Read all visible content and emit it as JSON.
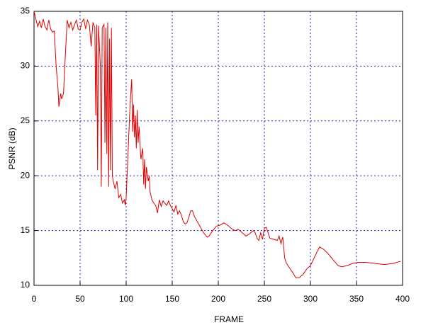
{
  "chart_data": {
    "type": "line",
    "xlabel": "FRAME",
    "ylabel": "PSNR (dB)",
    "color": "#e00000",
    "xlim": [
      0,
      400
    ],
    "ylim": [
      10,
      35
    ],
    "xticks": [
      0,
      50,
      100,
      150,
      200,
      250,
      300,
      350,
      400
    ],
    "yticks": [
      10,
      15,
      20,
      25,
      30,
      35
    ],
    "grid": true,
    "x": [
      0,
      2,
      4,
      6,
      8,
      10,
      12,
      14,
      16,
      18,
      20,
      22,
      24,
      26,
      27,
      29,
      30,
      32,
      34,
      36,
      38,
      40,
      42,
      44,
      46,
      48,
      50,
      52,
      54,
      56,
      58,
      60,
      62,
      64,
      66,
      67,
      68,
      69,
      70,
      72,
      73,
      74,
      76,
      77,
      78,
      79,
      80,
      81,
      82,
      83,
      84,
      85,
      86,
      88,
      90,
      92,
      94,
      96,
      98,
      99,
      100,
      102,
      104,
      105,
      106,
      107,
      108,
      109,
      110,
      111,
      112,
      113,
      114,
      116,
      118,
      119,
      120,
      121,
      122,
      124,
      125,
      126,
      128,
      130,
      132,
      134,
      136,
      138,
      140,
      142,
      144,
      146,
      148,
      150,
      152,
      154,
      156,
      158,
      160,
      162,
      164,
      166,
      168,
      170,
      172,
      174,
      176,
      180,
      184,
      188,
      190,
      194,
      198,
      202,
      206,
      210,
      214,
      218,
      222,
      226,
      230,
      234,
      238,
      240,
      242,
      244,
      246,
      248,
      250,
      252,
      254,
      256,
      260,
      264,
      266,
      268,
      270,
      272,
      274,
      278,
      282,
      284,
      288,
      292,
      296,
      300,
      304,
      308,
      310,
      314,
      318,
      322,
      326,
      330,
      334,
      340,
      346,
      352,
      360,
      370,
      380,
      390,
      398
    ],
    "values": [
      35,
      34.3,
      33.6,
      34.1,
      33.5,
      34.3,
      33.6,
      33.3,
      34.2,
      33.4,
      33.1,
      33.2,
      30,
      28,
      26.3,
      27.5,
      27,
      27.5,
      31,
      34.2,
      33.5,
      34,
      33.3,
      33.8,
      34.2,
      33.4,
      33.3,
      34,
      34.3,
      33.4,
      34.2,
      33.8,
      31.8,
      34,
      33.5,
      25.5,
      33.8,
      20.5,
      33.7,
      30,
      19,
      33.5,
      33.8,
      23,
      33.5,
      22,
      34,
      19,
      32.5,
      20.5,
      33.5,
      20,
      19.5,
      18.8,
      19.5,
      18,
      18.3,
      17.5,
      17.8,
      17.3,
      18,
      22,
      26,
      27.5,
      28.8,
      24,
      26.5,
      23.5,
      25.5,
      22.5,
      26,
      23,
      24.5,
      21.5,
      22.5,
      19.2,
      21.5,
      18.8,
      20.8,
      19.5,
      20,
      18.5,
      17.8,
      17.5,
      17.3,
      16.6,
      17.8,
      17.2,
      17.7,
      17.5,
      17.3,
      17.7,
      17.3,
      17,
      16.7,
      17.3,
      16.5,
      16.8,
      16.4,
      15.8,
      15.6,
      15.7,
      16.2,
      16.8,
      16.8,
      16.3,
      16,
      15.4,
      14.8,
      14.4,
      14.5,
      15,
      15.4,
      15.5,
      15.7,
      15.5,
      15.2,
      15,
      15.1,
      14.8,
      14.5,
      14.7,
      15,
      14.8,
      14.3,
      14.1,
      14.8,
      14.2,
      15.2,
      15.3,
      14.8,
      14.3,
      14.2,
      14.1,
      14.5,
      13.8,
      14.4,
      12.5,
      12,
      11.5,
      11,
      10.7,
      10.7,
      11,
      11.5,
      11.8,
      12.5,
      13.2,
      13.5,
      13.3,
      13,
      12.6,
      12.2,
      11.8,
      11.7,
      11.8,
      12,
      12.1,
      12.1,
      12,
      11.9,
      12,
      12.2
    ]
  }
}
